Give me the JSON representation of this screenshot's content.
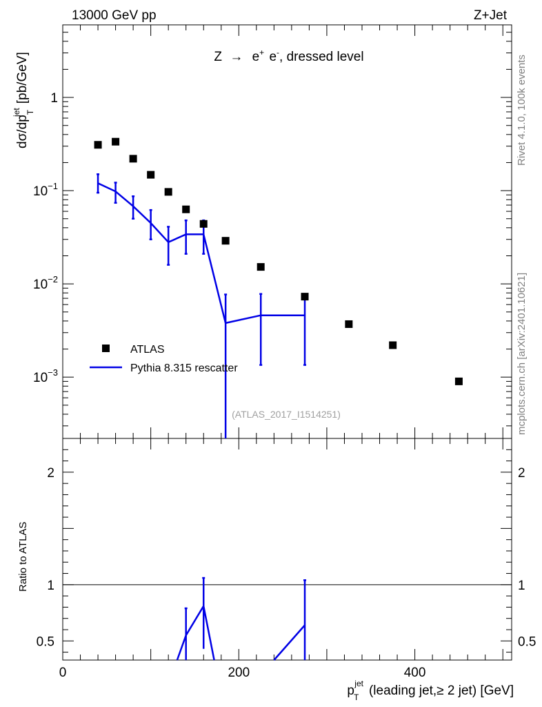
{
  "header": {
    "left": "13000 GeV pp",
    "right": "Z+Jet"
  },
  "side_text": {
    "rivet": "Rivet 4.1.0,  100k events",
    "mcplots": "mcplots.cern.ch [arXiv:2401.10621]"
  },
  "annotation": "(ATLAS_2017_I1514251)",
  "colors": {
    "atlas": "#000000",
    "pythia": "#0000e6",
    "side_text": "#808080"
  },
  "chart_data": [
    {
      "type": "scatter",
      "title": "Z → e⁺ e⁻, dressed level",
      "title_parts": {
        "z": "Z",
        "arrow": "→",
        "e1": "e",
        "plus": "+",
        "e2": "e",
        "minus": "-",
        "rest": ", dressed level"
      },
      "ylabel": "dσ/dp_T^jet [pb/GeV]",
      "ylabel_parts": {
        "main": "dσ/dp",
        "sup": "jet",
        "sub": "T",
        "unit": "[pb/GeV]"
      },
      "yscale": "log",
      "ylim": [
        0.00022,
        6
      ],
      "xlim": [
        0,
        510
      ],
      "yticks": [
        {
          "v": 1,
          "base": "1",
          "exp": ""
        },
        {
          "v": 0.1,
          "base": "10",
          "exp": "−1"
        },
        {
          "v": 0.01,
          "base": "10",
          "exp": "−2"
        },
        {
          "v": 0.001,
          "base": "10",
          "exp": "−3"
        }
      ],
      "legend_position": "bottom-left",
      "series": [
        {
          "name": "ATLAS",
          "marker": "square",
          "x": [
            40,
            60,
            80,
            100,
            120,
            140,
            160,
            185,
            225,
            275,
            325,
            375,
            450
          ],
          "y": [
            0.31,
            0.335,
            0.22,
            0.148,
            0.097,
            0.063,
            0.044,
            0.029,
            0.0152,
            0.0073,
            0.0037,
            0.0022,
            0.0009
          ]
        },
        {
          "name": "Pythia 8.315 rescatter",
          "marker": "line",
          "bins": [
            [
              40,
              60
            ],
            [
              60,
              80
            ],
            [
              80,
              100
            ],
            [
              100,
              120
            ],
            [
              120,
              140
            ],
            [
              140,
              160
            ],
            [
              160,
              180
            ],
            [
              180,
              200
            ],
            [
              200,
              250
            ],
            [
              250,
              300
            ]
          ],
          "x": [
            40,
            60,
            80,
            100,
            120,
            140,
            160,
            185,
            225,
            275
          ],
          "y": [
            0.12,
            0.098,
            0.068,
            0.045,
            0.028,
            0.034,
            0.034,
            0.0038,
            0.0046,
            0.0046
          ],
          "yerr_low": [
            0.095,
            0.074,
            0.05,
            0.03,
            0.016,
            0.021,
            0.021,
            0.0001,
            0.00135,
            0.00135
          ],
          "yerr_high": [
            0.15,
            0.122,
            0.087,
            0.062,
            0.041,
            0.048,
            0.048,
            0.0077,
            0.0078,
            0.0078
          ]
        }
      ]
    },
    {
      "type": "line",
      "ylabel": "Ratio to ATLAS",
      "xlabel": "p_T^jet (leading jet,≥ 2 jet) [GeV]",
      "xlabel_parts": {
        "p": "p",
        "sup": "jet",
        "sub": "T",
        "rest": "(leading jet,≥ 2 jet) [GeV]"
      },
      "xlim": [
        0,
        510
      ],
      "ylim": [
        0.33,
        2.3
      ],
      "xticks": [
        0,
        200,
        400
      ],
      "yticks": [
        0.5,
        1,
        2
      ],
      "reference_line": 1,
      "series": [
        {
          "name": "Pythia 8.315 rescatter",
          "segments": [
            [
              [
                130,
                0.2
              ],
              [
                140,
                0.55
              ],
              [
                160,
                0.81
              ],
              [
                172,
                0.2
              ]
            ],
            [
              [
                240,
                0.2
              ],
              [
                275,
                0.64
              ]
            ]
          ],
          "error_bars": [
            {
              "x": 140,
              "low": 0.2,
              "high": 0.79
            },
            {
              "x": 160,
              "low": 0.43,
              "high": 1.06
            },
            {
              "x": 275,
              "low": 0.2,
              "high": 1.04
            }
          ]
        }
      ]
    }
  ]
}
